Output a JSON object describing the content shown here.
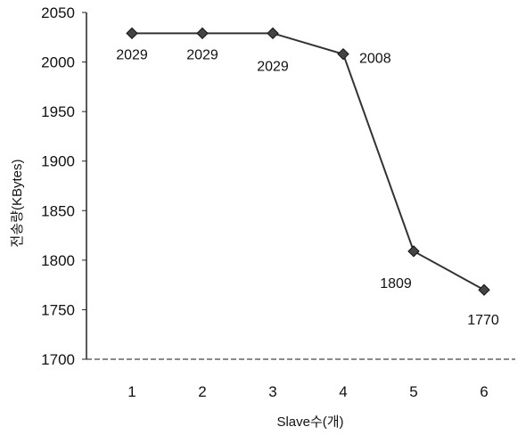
{
  "chart_data": {
    "type": "line",
    "title": "",
    "xlabel": "Slave수(개)",
    "ylabel": "전송량(KBytes)",
    "categories": [
      "1",
      "2",
      "3",
      "4",
      "5",
      "6"
    ],
    "series": [
      {
        "values": [
          2029,
          2029,
          2029,
          2008,
          1809,
          1770
        ],
        "color": "#333333"
      }
    ],
    "data_labels": [
      "2029",
      "2029",
      "2029",
      "2008",
      "1809",
      "1770"
    ],
    "y_ticks": [
      "1700",
      "1750",
      "1800",
      "1850",
      "1900",
      "1950",
      "2000",
      "2050"
    ],
    "ylim": [
      1700,
      2050
    ],
    "grid": false,
    "legend": "none",
    "marker": "diamond"
  }
}
